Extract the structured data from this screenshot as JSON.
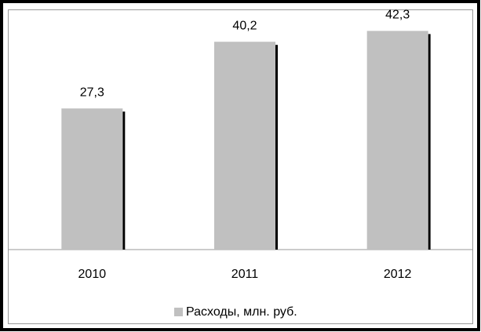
{
  "chart_data": {
    "type": "bar",
    "categories": [
      "2010",
      "2011",
      "2012"
    ],
    "series": [
      {
        "name": "Расходы, млн. руб.",
        "color": "#c0c0c0",
        "values": [
          27.3,
          40.2,
          42.3
        ],
        "value_labels": [
          "27,3",
          "40,2",
          "42,3"
        ]
      }
    ],
    "ylim": [
      0,
      46
    ],
    "legend": "bottom"
  }
}
